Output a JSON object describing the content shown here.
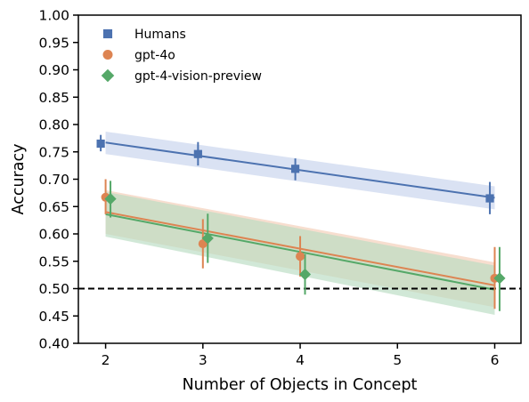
{
  "chart_data": {
    "type": "scatter",
    "title": "",
    "xlabel": "Number of Objects in Concept",
    "ylabel": "Accuracy",
    "xlim": [
      1.72,
      6.27
    ],
    "ylim": [
      0.4,
      1.0
    ],
    "xticks": [
      2,
      3,
      4,
      5,
      6
    ],
    "yticks": [
      0.4,
      0.45,
      0.5,
      0.55,
      0.6,
      0.65,
      0.7,
      0.75,
      0.8,
      0.85,
      0.9,
      0.95,
      1.0
    ],
    "grid": false,
    "legend_position": "top-left",
    "reference_line": {
      "y": 0.5,
      "style": "dashed",
      "color": "#000000"
    },
    "series": [
      {
        "name": "Humans",
        "marker": "square",
        "color": "#4c72b0",
        "band_color": "#c6d3ec",
        "x_offset": -0.05,
        "x": [
          2,
          3,
          4,
          6
        ],
        "y": [
          0.765,
          0.746,
          0.719,
          0.665
        ],
        "err_low": [
          0.751,
          0.725,
          0.698,
          0.636
        ],
        "err_high": [
          0.781,
          0.768,
          0.738,
          0.695
        ],
        "fit": {
          "x": [
            2,
            6
          ],
          "y": [
            0.767,
            0.666
          ]
        },
        "band": {
          "x": [
            2,
            6
          ],
          "low": [
            0.746,
            0.645
          ],
          "high": [
            0.787,
            0.687
          ]
        }
      },
      {
        "name": "gpt-4o",
        "marker": "circle",
        "color": "#dd8452",
        "band_color": "#f3cdb6",
        "x_offset": 0.0,
        "x": [
          2,
          3,
          4,
          6
        ],
        "y": [
          0.667,
          0.582,
          0.559,
          0.519
        ],
        "err_low": [
          0.636,
          0.537,
          0.522,
          0.463
        ],
        "err_high": [
          0.7,
          0.627,
          0.596,
          0.576
        ],
        "fit": {
          "x": [
            2,
            6
          ],
          "y": [
            0.64,
            0.506
          ]
        },
        "band": {
          "x": [
            2,
            6
          ],
          "low": [
            0.6,
            0.466
          ],
          "high": [
            0.68,
            0.548
          ]
        }
      },
      {
        "name": "gpt-4-vision-preview",
        "marker": "diamond",
        "color": "#55a868",
        "band_color": "#b9dcc2",
        "x_offset": 0.05,
        "x": [
          2,
          3,
          4,
          6
        ],
        "y": [
          0.664,
          0.592,
          0.526,
          0.519
        ],
        "err_low": [
          0.63,
          0.547,
          0.489,
          0.459
        ],
        "err_high": [
          0.697,
          0.637,
          0.563,
          0.576
        ],
        "fit": {
          "x": [
            2,
            6
          ],
          "y": [
            0.636,
            0.498
          ]
        },
        "band": {
          "x": [
            2,
            6
          ],
          "low": [
            0.595,
            0.452
          ],
          "high": [
            0.677,
            0.542
          ]
        }
      }
    ]
  }
}
